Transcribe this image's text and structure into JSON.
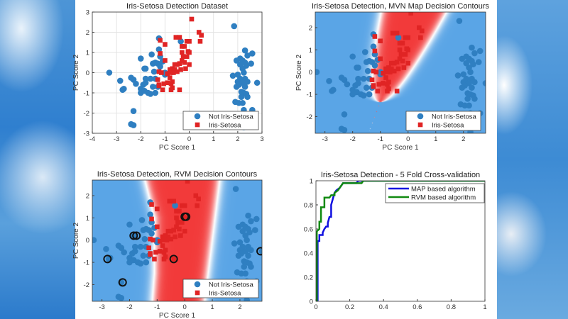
{
  "colors": {
    "not_setosa": "#2f7fc1",
    "setosa": "#e02424",
    "map_line": "#1010e0",
    "rvm_line": "#118a11",
    "contour_red": "#f23a3a",
    "contour_blue": "#5aa5e6"
  },
  "not_setosa_points": [
    [
      -3.3,
      0
    ],
    [
      -2.85,
      -0.4
    ],
    [
      -2.75,
      -0.85
    ],
    [
      -2.7,
      -0.8
    ],
    [
      -2.4,
      -0.25
    ],
    [
      -2.3,
      -0.35
    ],
    [
      -2.2,
      -0.55
    ],
    [
      -2.0,
      0.7
    ],
    [
      -2.0,
      -0.8
    ],
    [
      -2.0,
      -1.0
    ],
    [
      -1.9,
      -0.6
    ],
    [
      -1.85,
      0.2
    ],
    [
      -1.8,
      0.2
    ],
    [
      -1.8,
      -0.3
    ],
    [
      -1.8,
      -0.5
    ],
    [
      -1.85,
      -0.9
    ],
    [
      -1.7,
      -1.0
    ],
    [
      -1.6,
      -1.05
    ],
    [
      -1.55,
      0.9
    ],
    [
      -1.5,
      0.45
    ],
    [
      -1.4,
      0.5
    ],
    [
      -1.45,
      0.05
    ],
    [
      -1.4,
      -0.3
    ],
    [
      -1.3,
      0.45
    ],
    [
      -1.25,
      1.7
    ],
    [
      -1.25,
      1.15
    ],
    [
      -1.2,
      0.8
    ],
    [
      -1.1,
      0.55
    ],
    [
      -1.0,
      0.0
    ],
    [
      -1.0,
      -0.1
    ],
    [
      -1.3,
      -0.7
    ],
    [
      -1.4,
      -1.0
    ],
    [
      -1.5,
      -0.7
    ],
    [
      -2.3,
      -1.9
    ],
    [
      -2.4,
      -2.55
    ],
    [
      -2.3,
      -2.6
    ],
    [
      -0.35,
      1.55
    ],
    [
      -1.6,
      -0.3
    ],
    [
      -1.2,
      0.3
    ],
    [
      1.85,
      2.3
    ],
    [
      2.3,
      1.1
    ],
    [
      2.6,
      0.95
    ],
    [
      2.4,
      0.85
    ],
    [
      1.95,
      0.6
    ],
    [
      2.1,
      0.7
    ],
    [
      2.2,
      0.6
    ],
    [
      2.3,
      0.5
    ],
    [
      2.55,
      0.45
    ],
    [
      2.35,
      0.35
    ],
    [
      2.2,
      0.2
    ],
    [
      2.25,
      0.0
    ],
    [
      1.8,
      -0.15
    ],
    [
      2.1,
      -0.3
    ],
    [
      2.3,
      -0.3
    ],
    [
      2.0,
      -0.45
    ],
    [
      2.2,
      -0.5
    ],
    [
      2.4,
      -0.45
    ],
    [
      2.8,
      -0.5
    ],
    [
      2.05,
      -0.6
    ],
    [
      2.3,
      -0.7
    ],
    [
      1.95,
      -0.7
    ],
    [
      2.15,
      -0.95
    ],
    [
      2.25,
      -1.0
    ],
    [
      2.35,
      -1.05
    ],
    [
      2.15,
      -1.2
    ],
    [
      2.4,
      -1.2
    ],
    [
      1.9,
      -1.45
    ],
    [
      2.05,
      -1.5
    ],
    [
      2.2,
      -1.5
    ],
    [
      2.25,
      -1.85
    ],
    [
      2.6,
      -1.85
    ],
    [
      2.25,
      -2.7
    ],
    [
      2.0,
      -0.1
    ],
    [
      2.1,
      0.4
    ]
  ],
  "setosa_points": [
    [
      0.1,
      2.65
    ],
    [
      0.4,
      2.0
    ],
    [
      0.5,
      1.85
    ],
    [
      0.45,
      1.55
    ],
    [
      -0.55,
      1.75
    ],
    [
      -0.4,
      1.75
    ],
    [
      -0.1,
      1.55
    ],
    [
      0.0,
      1.55
    ],
    [
      -1.2,
      1.6
    ],
    [
      -0.3,
      1.3
    ],
    [
      -0.2,
      1.3
    ],
    [
      -1.0,
      1.4
    ],
    [
      -0.3,
      1.0
    ],
    [
      -0.05,
      1.05
    ],
    [
      0.0,
      1.0
    ],
    [
      -1.2,
      0.95
    ],
    [
      -0.25,
      0.8
    ],
    [
      -0.1,
      0.8
    ],
    [
      -1.0,
      0.6
    ],
    [
      -0.3,
      0.6
    ],
    [
      -0.2,
      0.5
    ],
    [
      -0.5,
      0.4
    ],
    [
      -0.6,
      0.4
    ],
    [
      -0.4,
      0.45
    ],
    [
      -0.7,
      0.2
    ],
    [
      -0.8,
      0.15
    ],
    [
      -0.6,
      0.15
    ],
    [
      -0.5,
      0.05
    ],
    [
      -0.35,
      0.15
    ],
    [
      -0.15,
      0.2
    ],
    [
      0.0,
      0.4
    ],
    [
      -0.65,
      0.0
    ],
    [
      -0.75,
      0.0
    ],
    [
      -1.25,
      0.05
    ],
    [
      -1.15,
      0.0
    ],
    [
      -0.9,
      -0.05
    ],
    [
      -0.8,
      -0.25
    ],
    [
      -1.3,
      -0.35
    ],
    [
      -1.25,
      -0.65
    ],
    [
      -1.05,
      -0.55
    ],
    [
      -0.9,
      -0.5
    ],
    [
      -0.75,
      -0.55
    ],
    [
      -0.7,
      -0.45
    ],
    [
      -0.7,
      -0.75
    ],
    [
      -0.75,
      -0.85
    ],
    [
      -1.1,
      -0.85
    ],
    [
      -0.4,
      -0.85
    ],
    [
      -1.25,
      -0.6
    ]
  ],
  "relevance_vectors": [
    [
      -2.8,
      -0.85
    ],
    [
      -1.85,
      0.2
    ],
    [
      -1.75,
      0.2
    ],
    [
      -2.25,
      -1.9
    ],
    [
      -0.4,
      -0.85
    ],
    [
      0.0,
      1.05
    ],
    [
      0.05,
      1.05
    ],
    [
      2.75,
      -0.5
    ]
  ],
  "chart_data": [
    {
      "type": "scatter",
      "title": "Iris-Setosa Detection Dataset",
      "xlabel": "PC Score 1",
      "ylabel": "PC Score 2",
      "xlim": [
        -4,
        3
      ],
      "ylim": [
        -3,
        3
      ],
      "grid": true,
      "xticks": [
        "-4",
        "-3",
        "-2",
        "-1",
        "0",
        "1",
        "2",
        "3"
      ],
      "yticks": [
        "-3",
        "-2",
        "-1",
        "0",
        "1",
        "2",
        "3"
      ],
      "legend": {
        "placement": "bottom-right",
        "entries": [
          "Not Iris-Setosa",
          "Iris-Setosa"
        ]
      },
      "contour": "none"
    },
    {
      "type": "scatter",
      "title": "Iris-Setosa Detection, MVN Map Decision Contours",
      "xlabel": "PC Score 1",
      "ylabel": "PC Score 2",
      "xlim": [
        -3.35,
        2.8
      ],
      "ylim": [
        -2.75,
        2.7
      ],
      "grid": false,
      "xticks": [
        "-3",
        "-2",
        "-1",
        "0",
        "1",
        "2"
      ],
      "yticks": [
        "-2",
        "-1",
        "0",
        "1",
        "2"
      ],
      "legend": {
        "placement": "bottom-right",
        "entries": [
          "Not Iris-Setosa",
          "Iris-Setosa"
        ]
      },
      "contour": "mvn"
    },
    {
      "type": "scatter",
      "title": "Iris-Setosa Detection, RVM Decision Contours",
      "xlabel": "PC Score 1",
      "ylabel": "PC Score 2",
      "xlim": [
        -3.35,
        2.8
      ],
      "ylim": [
        -2.75,
        2.7
      ],
      "grid": false,
      "xticks": [
        "-3",
        "-2",
        "-1",
        "0",
        "1",
        "2"
      ],
      "yticks": [
        "-2",
        "-1",
        "0",
        "1",
        "2"
      ],
      "legend": {
        "placement": "bottom-right",
        "entries": [
          "Not Iris-Setosa",
          "Iris-Setosa"
        ]
      },
      "contour": "rvm",
      "show_relevance_vectors": true
    },
    {
      "type": "line",
      "title": "Iris-Setosa Detection - 5 Fold Cross-validation",
      "xlabel": "",
      "ylabel": "",
      "xlim": [
        0,
        1
      ],
      "ylim": [
        0,
        1
      ],
      "grid": false,
      "xticks": [
        "0",
        "0.2",
        "0.4",
        "0.6",
        "0.8",
        "1"
      ],
      "yticks": [
        "0",
        "0.2",
        "0.4",
        "0.6",
        "0.8",
        "1"
      ],
      "legend": {
        "placement": "top-right",
        "entries": [
          "MAP based algorithm",
          "RVM based algorithm"
        ]
      },
      "series": [
        {
          "name": "MAP based algorithm",
          "x": [
            0,
            0.01,
            0.01,
            0.02,
            0.02,
            0.04,
            0.04,
            0.05,
            0.06,
            0.07,
            0.07,
            0.08,
            0.09,
            0.09,
            0.1,
            0.11,
            0.12,
            0.14,
            0.16,
            0.24,
            0.25,
            1
          ],
          "y": [
            0,
            0,
            0.5,
            0.5,
            0.55,
            0.55,
            0.57,
            0.6,
            0.62,
            0.62,
            0.65,
            0.7,
            0.7,
            0.8,
            0.85,
            0.9,
            0.92,
            0.94,
            0.98,
            0.98,
            1,
            1
          ]
        },
        {
          "name": "RVM based algorithm",
          "x": [
            0,
            0.005,
            0.005,
            0.02,
            0.02,
            0.03,
            0.03,
            0.05,
            0.05,
            0.08,
            0.09,
            0.11,
            0.11,
            0.13,
            0.16,
            0.27,
            0.28,
            1
          ],
          "y": [
            0,
            0,
            0.58,
            0.6,
            0.66,
            0.66,
            0.78,
            0.78,
            0.86,
            0.86,
            0.88,
            0.88,
            0.9,
            0.92,
            0.98,
            0.98,
            1,
            1
          ]
        }
      ]
    }
  ]
}
